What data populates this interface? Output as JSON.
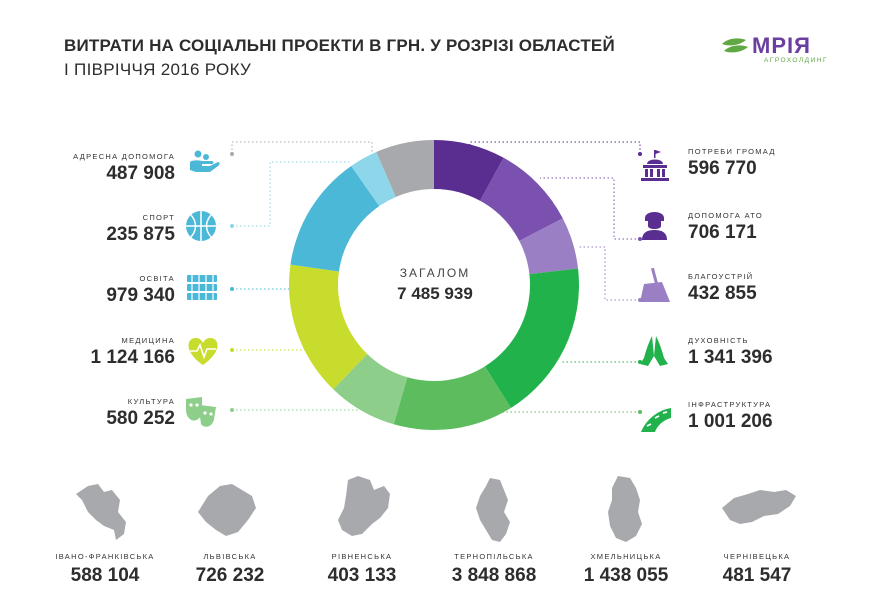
{
  "title": "ВИТРАТИ НА СОЦІАЛЬНІ ПРОЕКТИ В ГРН. У РОЗРІЗІ ОБЛАСТЕЙ",
  "subtitle": "І ПІВРІЧЧЯ 2016 РОКУ",
  "logo": {
    "name": "МРІЯ",
    "tagline": "АГРОХОЛДИНГ",
    "color": "#6a3fa0",
    "leaf_color": "#5fa843"
  },
  "total": {
    "label": "ЗАГАЛОМ",
    "value": "7 485 939"
  },
  "chart_data": {
    "type": "pie",
    "title": "ВИТРАТИ НА СОЦІАЛЬНІ ПРОЕКТИ В ГРН. У РОЗРІЗІ ОБЛАСТЕЙ",
    "subtitle": "І ПІВРІЧЧЯ 2016 РОКУ",
    "donut": true,
    "categories": [
      "ПОТРЕБИ ГРОМАД",
      "ДОПОМОГА АТО",
      "БЛАГОУСТРІЙ",
      "ДУХОВНІСТЬ",
      "ІНФРАСТРУКТУРА",
      "КУЛЬТУРА",
      "МЕДИЦИНА",
      "ОСВІТА",
      "СПОРТ",
      "АДРЕСНА ДОПОМОГА"
    ],
    "values": [
      596770,
      706171,
      432855,
      1341396,
      1001206,
      580252,
      1124166,
      979340,
      235875,
      487908
    ],
    "colors": [
      "#5a2d91",
      "#7b51b0",
      "#9a7fc4",
      "#22b24c",
      "#5dbd5e",
      "#8dcf8a",
      "#c8dc2d",
      "#4bb8d8",
      "#8ed6ea",
      "#a7a9ac"
    ]
  },
  "left_items": [
    {
      "label": "АДРЕСНА ДОПОМОГА",
      "value": "487 908",
      "icon": "helping-hands-icon"
    },
    {
      "label": "СПОРТ",
      "value": "235 875",
      "icon": "ball-icon"
    },
    {
      "label": "ОСВІТА",
      "value": "979 340",
      "icon": "books-icon"
    },
    {
      "label": "МЕДИЦИНА",
      "value": "1 124 166",
      "icon": "heart-pulse-icon"
    },
    {
      "label": "КУЛЬТУРА",
      "value": "580 252",
      "icon": "theatre-masks-icon"
    }
  ],
  "right_items": [
    {
      "label": "ПОТРЕБИ ГРОМАД",
      "value": "596 770",
      "icon": "government-building-icon"
    },
    {
      "label": "ДОПОМОГА АТО",
      "value": "706 171",
      "icon": "soldier-icon"
    },
    {
      "label": "БЛАГОУСТРІЙ",
      "value": "432 855",
      "icon": "broom-icon"
    },
    {
      "label": "ДУХОВНІСТЬ",
      "value": "1 341 396",
      "icon": "praying-hands-icon"
    },
    {
      "label": "ІНФРАСТРУКТУРА",
      "value": "1 001 206",
      "icon": "road-icon"
    }
  ],
  "regions": [
    {
      "name": "ІВАНО-ФРАНКІВСЬКА",
      "value": "588 104"
    },
    {
      "name": "ЛЬВІВСЬКА",
      "value": "726 232"
    },
    {
      "name": "РІВНЕНСЬКА",
      "value": "403 133"
    },
    {
      "name": "ТЕРНОПІЛЬСЬКА",
      "value": "3 848 868"
    },
    {
      "name": "ХМЕЛЬНИЦЬКА",
      "value": "1 438 055"
    },
    {
      "name": "ЧЕРНІВЕЦЬКА",
      "value": "481 547"
    }
  ]
}
